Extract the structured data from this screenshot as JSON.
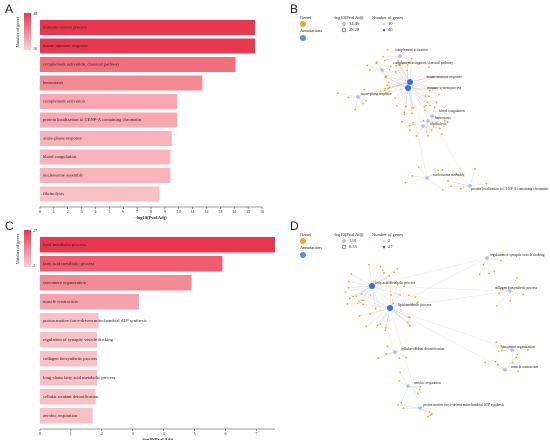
{
  "chart_data": [
    {
      "type": "bar",
      "orientation": "horizontal",
      "label": "A",
      "categories": [
        "immune system process",
        "innate immune response",
        "complement activation, classical pathway",
        "hemostasis",
        "complement activation",
        "protein localization to CENP-A containing chromatin",
        "acute-phase response",
        "blood coagulation",
        "nucleosome assembly",
        "fibrinolysis"
      ],
      "values": [
        15.5,
        15.5,
        14.1,
        11.7,
        9.9,
        9.9,
        9.5,
        9.4,
        9.4,
        8.6
      ],
      "colors": [
        "#e8384f",
        "#e8384f",
        "#f0707e",
        "#f28a96",
        "#f7a8b1",
        "#f7a8b1",
        "#f8b4bc",
        "#f8b4bc",
        "#f8b4bc",
        "#f9c0c6"
      ],
      "xlabel": "-log10(Pval Adj)",
      "xlim": [
        0,
        16
      ],
      "xticks": [
        0,
        1,
        2,
        3,
        4,
        5,
        6,
        7,
        8,
        9,
        10,
        11,
        12,
        13,
        14,
        15,
        16
      ],
      "colorbar_label": "Number of genes",
      "colorbar_ticks": [
        40,
        10
      ],
      "colorbar_colors": [
        "#e8384f",
        "#fbd0d5"
      ]
    },
    {
      "type": "bar",
      "orientation": "horizontal",
      "label": "C",
      "categories": [
        "lipid metabolic process",
        "fatty acid metabolic process",
        "sarcomere organization",
        "muscle contraction",
        "proton motive force-driven mitochondrial ATP synthesis",
        "regulation of synaptic vesicle docking",
        "collagen biosynthetic process",
        "long-chain fatty acid metabolic process",
        "cellular oxidant detoxification",
        "aerobic respiration"
      ],
      "values": [
        7.6,
        5.9,
        4.9,
        3.2,
        1.9,
        1.85,
        1.85,
        1.85,
        1.8,
        1.7
      ],
      "colors": [
        "#e8384f",
        "#ee5d6e",
        "#f28a96",
        "#f6a2ac",
        "#f9c0c6",
        "#f9c0c6",
        "#f9c0c6",
        "#f9c0c6",
        "#f9c0c6",
        "#f9c0c6"
      ],
      "xlabel": "-log10(Pval Adj)",
      "xlim": [
        0,
        7.6
      ],
      "xticks": [
        0,
        1,
        2,
        3,
        4,
        5,
        6,
        7
      ],
      "colorbar_label": "Number of genes",
      "colorbar_ticks": [
        27,
        2
      ],
      "colorbar_colors": [
        "#e8384f",
        "#fbd0d5"
      ]
    }
  ],
  "networks": [
    {
      "label": "B",
      "genes": "Genes",
      "annotations": "Annotations",
      "size_title": "-log10(Pval Adj)",
      "size_values": [
        14.46,
        28.28
      ],
      "count_title": "Number of genes",
      "count_values": [
        10,
        40
      ],
      "nodes": [
        "complement activation",
        "complement activation, classical pathway",
        "innate immune response",
        "immune system process",
        "acute-phase response",
        "blood coagulation",
        "hemostasis",
        "fibrinolysis",
        "nucleosome assembly",
        "protein localization to CENP-A containing chromatin"
      ]
    },
    {
      "label": "D",
      "genes": "Genes",
      "annotations": "Annotations",
      "size_title": "-log10(Pval Adj)",
      "size_values": [
        1.91,
        8.33
      ],
      "count_title": "Number of genes",
      "count_values": [
        2,
        27
      ],
      "nodes": [
        "regulation of synaptic vesicle docking",
        "fatty acid metabolic process",
        "lipid metabolic process",
        "collagen biosynthetic process",
        "sarcomere organization",
        "cellular oxidant detoxification",
        "muscle contraction",
        "aerobic respiration",
        "proton motive force-driven mitochondrial ATP synthesis"
      ]
    }
  ]
}
